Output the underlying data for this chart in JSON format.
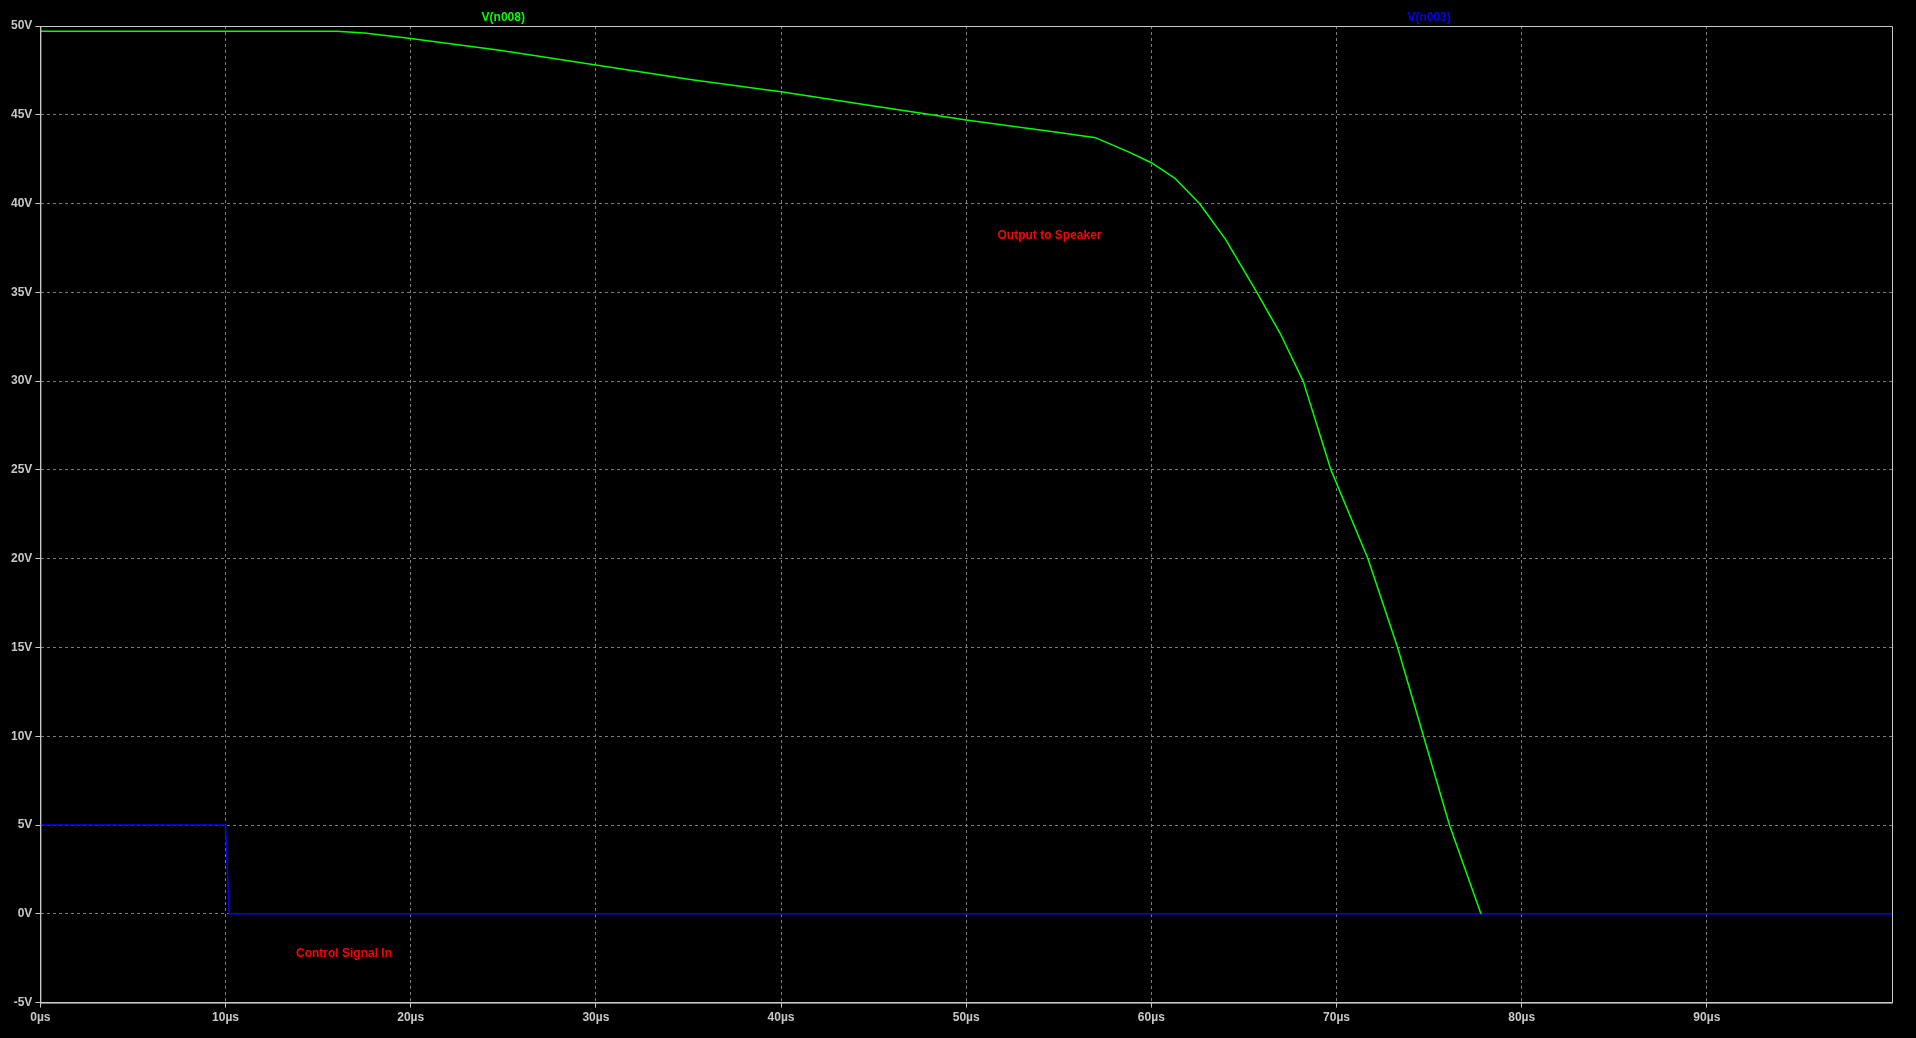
{
  "chart_data": {
    "type": "line",
    "legend": "top",
    "grid": true,
    "line_style": "solid",
    "marker": "none",
    "xlim": [
      0,
      100
    ],
    "ylim": [
      -5,
      50
    ],
    "xticks": [
      {
        "value": 0,
        "label": "0µs"
      },
      {
        "value": 10,
        "label": "10µs"
      },
      {
        "value": 20,
        "label": "20µs"
      },
      {
        "value": 30,
        "label": "30µs"
      },
      {
        "value": 40,
        "label": "40µs"
      },
      {
        "value": 50,
        "label": "50µs"
      },
      {
        "value": 60,
        "label": "60µs"
      },
      {
        "value": 70,
        "label": "70µs"
      },
      {
        "value": 80,
        "label": "80µs"
      },
      {
        "value": 90,
        "label": "90µs"
      }
    ],
    "yticks": [
      {
        "value": -5,
        "label": "-5V"
      },
      {
        "value": 0,
        "label": "0V"
      },
      {
        "value": 5,
        "label": "5V"
      },
      {
        "value": 10,
        "label": "10V"
      },
      {
        "value": 15,
        "label": "15V"
      },
      {
        "value": 20,
        "label": "20V"
      },
      {
        "value": 25,
        "label": "25V"
      },
      {
        "value": 30,
        "label": "30V"
      },
      {
        "value": 35,
        "label": "35V"
      },
      {
        "value": 40,
        "label": "40V"
      },
      {
        "value": 45,
        "label": "45V"
      },
      {
        "value": 50,
        "label": "50V"
      }
    ],
    "series": [
      {
        "name": "V(n008)",
        "color": "#00ff00",
        "x": [
          0,
          10,
          16,
          17.5,
          20,
          25,
          30,
          35,
          40,
          45,
          50,
          55,
          57,
          58.8,
          60,
          61.3,
          62.6,
          64,
          65.7,
          67,
          68.2,
          69.7,
          71.7,
          73.3,
          74.7,
          76.1,
          77.8
        ],
        "values": [
          49.7,
          49.7,
          49.7,
          49.6,
          49.3,
          48.6,
          47.8,
          47.0,
          46.3,
          45.5,
          44.7,
          44.0,
          43.7,
          42.9,
          42.3,
          41.4,
          40,
          38,
          35,
          32.6,
          30,
          25,
          20,
          15,
          10,
          5,
          0
        ]
      },
      {
        "name": "V(n003)",
        "color": "#0000ff",
        "x": [
          0,
          10,
          10.2,
          100
        ],
        "values": [
          5,
          5,
          0,
          0
        ]
      }
    ],
    "annotations": [
      "Output to Speaker",
      "Control Signal In"
    ]
  }
}
